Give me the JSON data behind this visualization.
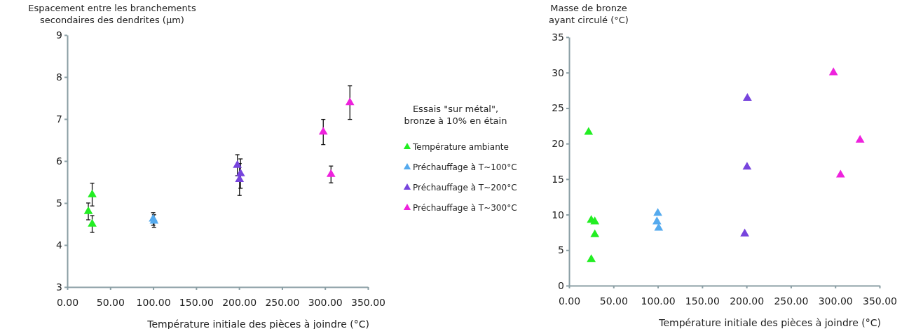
{
  "chart_data": [
    {
      "type": "scatter",
      "ylabel": "Espacement entre les branchements secondaires des dendrites (µm)",
      "xlabel": "Température initiale des pièces à joindre (°C)",
      "legend_title": "Essais \"sur métal\", bronze à 10% en étain",
      "legend": "right",
      "marker": "triangle",
      "xlim": [
        0,
        350
      ],
      "xticks": [
        {
          "value": 0,
          "label": "0.00"
        },
        {
          "value": 50,
          "label": "50.00"
        },
        {
          "value": 100,
          "label": "100.00"
        },
        {
          "value": 150,
          "label": "150.00"
        },
        {
          "value": 200,
          "label": "200.00"
        },
        {
          "value": 250,
          "label": "250.00"
        },
        {
          "value": 300,
          "label": "300.00"
        },
        {
          "value": 350,
          "label": "350.00"
        }
      ],
      "ylim": [
        3,
        9
      ],
      "yticks": [
        3,
        4,
        5,
        6,
        7,
        8,
        9
      ],
      "series": [
        {
          "name": "Température ambiante",
          "color": "#22ee22",
          "x": [
            24.5,
            29,
            29
          ],
          "values": [
            4.8,
            5.2,
            4.5
          ],
          "errors": [
            0.2,
            0.27,
            0.2
          ]
        },
        {
          "name": "Préchauffage à T~100°C",
          "color": "#55aaee",
          "x": [
            100,
            101
          ],
          "values": [
            4.62,
            4.57
          ],
          "errors": [
            0.15,
            0.15
          ]
        },
        {
          "name": "Préchauffage à T~200°C",
          "color": "#7744dd",
          "x": [
            198,
            201.7,
            200.5
          ],
          "values": [
            5.9,
            5.7,
            5.56
          ],
          "errors": [
            0.25,
            0.35,
            0.38
          ]
        },
        {
          "name": "Préchauffage à T~300°C",
          "color": "#ee22dd",
          "x": [
            298,
            307,
            329
          ],
          "values": [
            6.69,
            5.68,
            7.39
          ],
          "errors": [
            0.3,
            0.2,
            0.4
          ]
        }
      ]
    },
    {
      "type": "scatter",
      "ylabel": "Masse de bronze ayant circulé (°C)",
      "xlabel": "Température initiale des pièces à joindre (°C)",
      "marker": "triangle",
      "xlim": [
        0,
        350
      ],
      "xticks": [
        {
          "value": 0,
          "label": "0.00"
        },
        {
          "value": 50,
          "label": "50.00"
        },
        {
          "value": 100,
          "label": "100.00"
        },
        {
          "value": 150,
          "label": "150.00"
        },
        {
          "value": 200,
          "label": "200.00"
        },
        {
          "value": 250,
          "label": "250.00"
        },
        {
          "value": 300,
          "label": "300.00"
        },
        {
          "value": 350,
          "label": "350.00"
        }
      ],
      "ylim": [
        0,
        35
      ],
      "yticks": [
        0,
        5,
        10,
        15,
        20,
        25,
        30,
        35
      ],
      "series": [
        {
          "color": "#22ee22",
          "x": [
            22,
            25,
            29,
            29,
            25
          ],
          "values": [
            21.6,
            9.2,
            9.0,
            7.2,
            3.7
          ]
        },
        {
          "color": "#55aaee",
          "x": [
            100,
            99,
            101
          ],
          "values": [
            10.2,
            9.0,
            8.1
          ]
        },
        {
          "color": "#7744dd",
          "x": [
            201,
            200.6,
            198
          ],
          "values": [
            26.4,
            16.7,
            7.3
          ]
        },
        {
          "color": "#ee22dd",
          "x": [
            298,
            306,
            328
          ],
          "values": [
            30.0,
            15.6,
            20.5
          ]
        }
      ]
    }
  ]
}
